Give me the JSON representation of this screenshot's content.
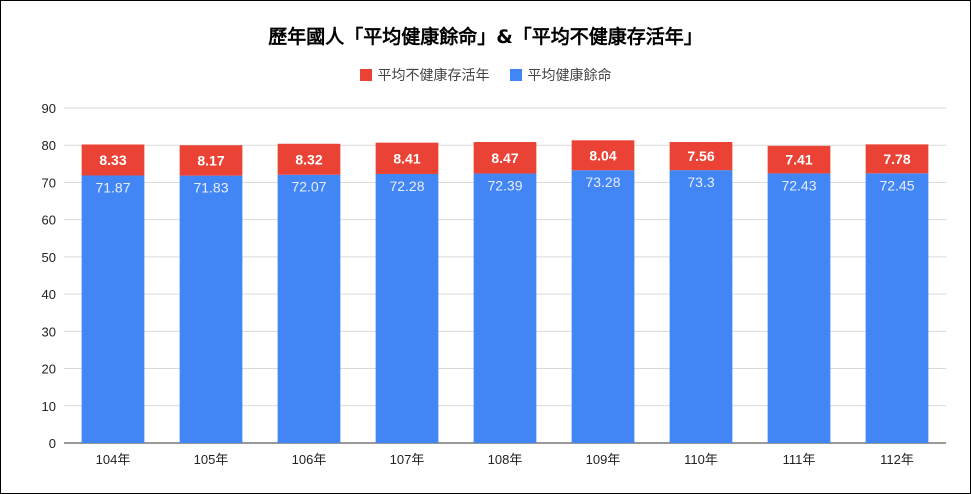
{
  "chart_data": {
    "type": "bar",
    "stacked": true,
    "title": "歷年國人「平均健康餘命」&「平均不健康存活年」",
    "categories": [
      "104年",
      "105年",
      "106年",
      "107年",
      "108年",
      "109年",
      "110年",
      "111年",
      "112年"
    ],
    "series": [
      {
        "name": "平均健康餘命",
        "color": "#4285f4",
        "values": [
          71.87,
          71.83,
          72.07,
          72.28,
          72.39,
          73.28,
          73.3,
          72.43,
          72.45
        ]
      },
      {
        "name": "平均不健康存活年",
        "color": "#ea4335",
        "values": [
          8.33,
          8.17,
          8.32,
          8.41,
          8.47,
          8.04,
          7.56,
          7.41,
          7.78
        ]
      }
    ],
    "legend_order": [
      "平均不健康存活年",
      "平均健康餘命"
    ],
    "legend_position": "top",
    "ylim": [
      0,
      90
    ],
    "yticks": [
      0,
      10,
      20,
      30,
      40,
      50,
      60,
      70,
      80,
      90
    ],
    "grid": true,
    "xlabel": "",
    "ylabel": ""
  }
}
